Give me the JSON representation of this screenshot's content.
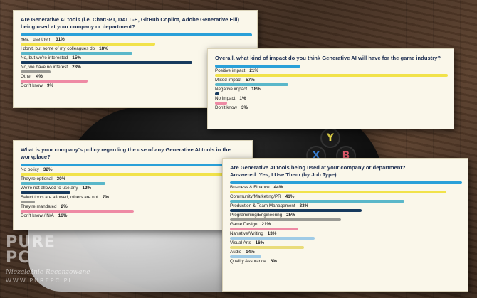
{
  "watermark": {
    "logo_top": "PURE",
    "logo_bottom": "PC",
    "tagline": "Niezależnie Recenzowane",
    "url": "WWW.PUREPC.PL"
  },
  "controller_buttons": [
    "Y",
    "X",
    "B"
  ],
  "chart_data": [
    {
      "type": "bar",
      "title": "Are Generative AI tools (i.e. ChatGPT, DALL-E, GitHub Copilot, Adobe Generative Fill) being used at your company or department?",
      "categories": [
        "Yes, I use them",
        "I don't, but some of my colleagues do",
        "No, but we're interested",
        "No, we have no interest",
        "Other",
        "Don't know"
      ],
      "values": [
        31,
        18,
        15,
        23,
        4,
        9
      ],
      "value_labels": [
        "31%",
        "18%",
        "15%",
        "23%",
        "4%",
        "9%"
      ],
      "colors": [
        "#2aa0d8",
        "#f1e24a",
        "#5ab7c9",
        "#173a5e",
        "#9a9a94",
        "#ee8aa4"
      ],
      "xlim": [
        0,
        31
      ]
    },
    {
      "type": "bar",
      "title": "Overall, what kind of impact do you think Generative AI will have for the game industry?",
      "categories": [
        "Positive impact",
        "Mixed impact",
        "Negative impact",
        "No impact",
        "Don't know"
      ],
      "values": [
        21,
        57,
        18,
        1,
        3
      ],
      "value_labels": [
        "21%",
        "57%",
        "18%",
        "1%",
        "3%"
      ],
      "colors": [
        "#2aa0d8",
        "#f1e24a",
        "#5ab7c9",
        "#173a5e",
        "#ee8aa4"
      ],
      "xlim": [
        0,
        57
      ]
    },
    {
      "type": "bar",
      "title": "What is your company's policy regarding the use of any Generative AI tools in the workplace?",
      "categories": [
        "No policy",
        "They're optional",
        "We're not allowed to use any",
        "Select tools are allowed, others are not",
        "They're mandated",
        "Don't know / N/A"
      ],
      "values": [
        32,
        30,
        12,
        7,
        2,
        16
      ],
      "value_labels": [
        "32%",
        "30%",
        "12%",
        "7%",
        "2%",
        "16%"
      ],
      "colors": [
        "#2aa0d8",
        "#f1e24a",
        "#5ab7c9",
        "#173a5e",
        "#9a9a94",
        "#ee8aa4"
      ],
      "xlim": [
        0,
        32
      ]
    },
    {
      "type": "bar",
      "title": "Are Generative AI tools being used at your company or department?",
      "subtitle": "Answered: Yes, I Use Them (by Job Type)",
      "categories": [
        "Business & Finance",
        "Community/Marketing/PR",
        "Production & Team Management",
        "Programming/Engineering",
        "Game Design",
        "Narrative/Writing",
        "Visual Arts",
        "Audio",
        "Quality Assurance"
      ],
      "values": [
        44,
        41,
        33,
        25,
        21,
        13,
        16,
        14,
        6
      ],
      "value_labels": [
        "44%",
        "41%",
        "33%",
        "25%",
        "21%",
        "13%",
        "16%",
        "14%",
        "6%"
      ],
      "colors": [
        "#2aa0d8",
        "#f1e24a",
        "#5ab7c9",
        "#173a5e",
        "#9a9a94",
        "#ee8aa4",
        "#9fcbe6",
        "#e9dc7a",
        "#9fcbe6"
      ],
      "xlim": [
        0,
        44
      ]
    }
  ]
}
